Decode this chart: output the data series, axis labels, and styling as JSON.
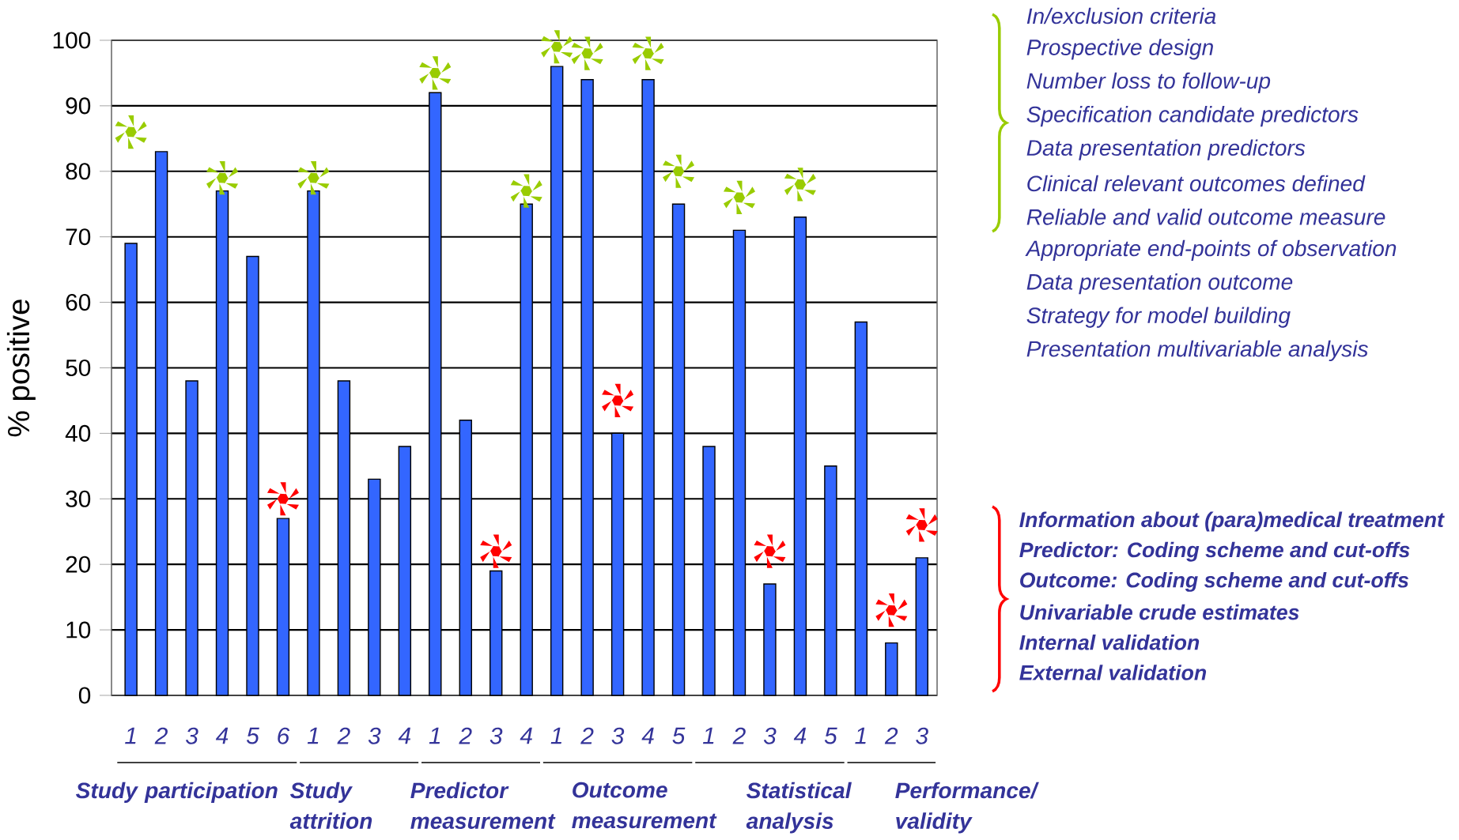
{
  "chart_data": {
    "type": "bar",
    "ylabel": "% positive",
    "categories": [
      "1",
      "2",
      "3",
      "4",
      "5",
      "6",
      "1",
      "2",
      "3",
      "4",
      "1",
      "2",
      "3",
      "4",
      "1",
      "2",
      "3",
      "4",
      "5",
      "1",
      "2",
      "3",
      "4",
      "5",
      "1",
      "2",
      "3"
    ],
    "series": [
      {
        "color": "#3366ff",
        "values": [
          69,
          83,
          48,
          77,
          67,
          27,
          77,
          48,
          33,
          38,
          92,
          42,
          19,
          75,
          96,
          94,
          40,
          94,
          75,
          38,
          71,
          17,
          73,
          35,
          57,
          8,
          21
        ]
      },
      {
        "type": "scatter",
        "color": "#99cc00",
        "marker": "star",
        "values": [
          86,
          null,
          null,
          79,
          null,
          null,
          79,
          null,
          null,
          null,
          95,
          null,
          null,
          77,
          99,
          98,
          null,
          98,
          80,
          null,
          76,
          null,
          78,
          null,
          null,
          null,
          null
        ]
      },
      {
        "type": "scatter",
        "color": "#ff0000",
        "marker": "star",
        "values": [
          null,
          null,
          null,
          null,
          null,
          30,
          null,
          null,
          null,
          null,
          null,
          null,
          22,
          null,
          null,
          null,
          45,
          null,
          null,
          null,
          null,
          22,
          null,
          null,
          null,
          13,
          26
        ]
      }
    ],
    "ylim": [
      0,
      100
    ],
    "yticks": [
      0,
      10,
      20,
      30,
      40,
      50,
      60,
      70,
      80,
      90,
      100
    ],
    "grid": "y",
    "annotations": [
      "Study participation",
      "Study attrition",
      "Predictor measurement",
      "Outcome measurement",
      "Statistical analysis",
      "Performance/ validity",
      "In/exclusion criteria",
      "Prospective design",
      "Number loss to follow-up",
      "Specification candidate predictors",
      "Data presentation predictors",
      "Clinical relevant outcomes defined",
      "Reliable and valid outcome measure",
      "Appropriate end-points of observation",
      "Data presentation outcome",
      "Strategy for model building",
      "Presentation multivariable analysis",
      "Information about (para)medical treatment",
      "Predictor: Coding scheme and cut-offs",
      "Outcome: Coding scheme and cut-offs",
      "Univariable crude estimates",
      "Internal validation",
      "External validation"
    ]
  }
}
